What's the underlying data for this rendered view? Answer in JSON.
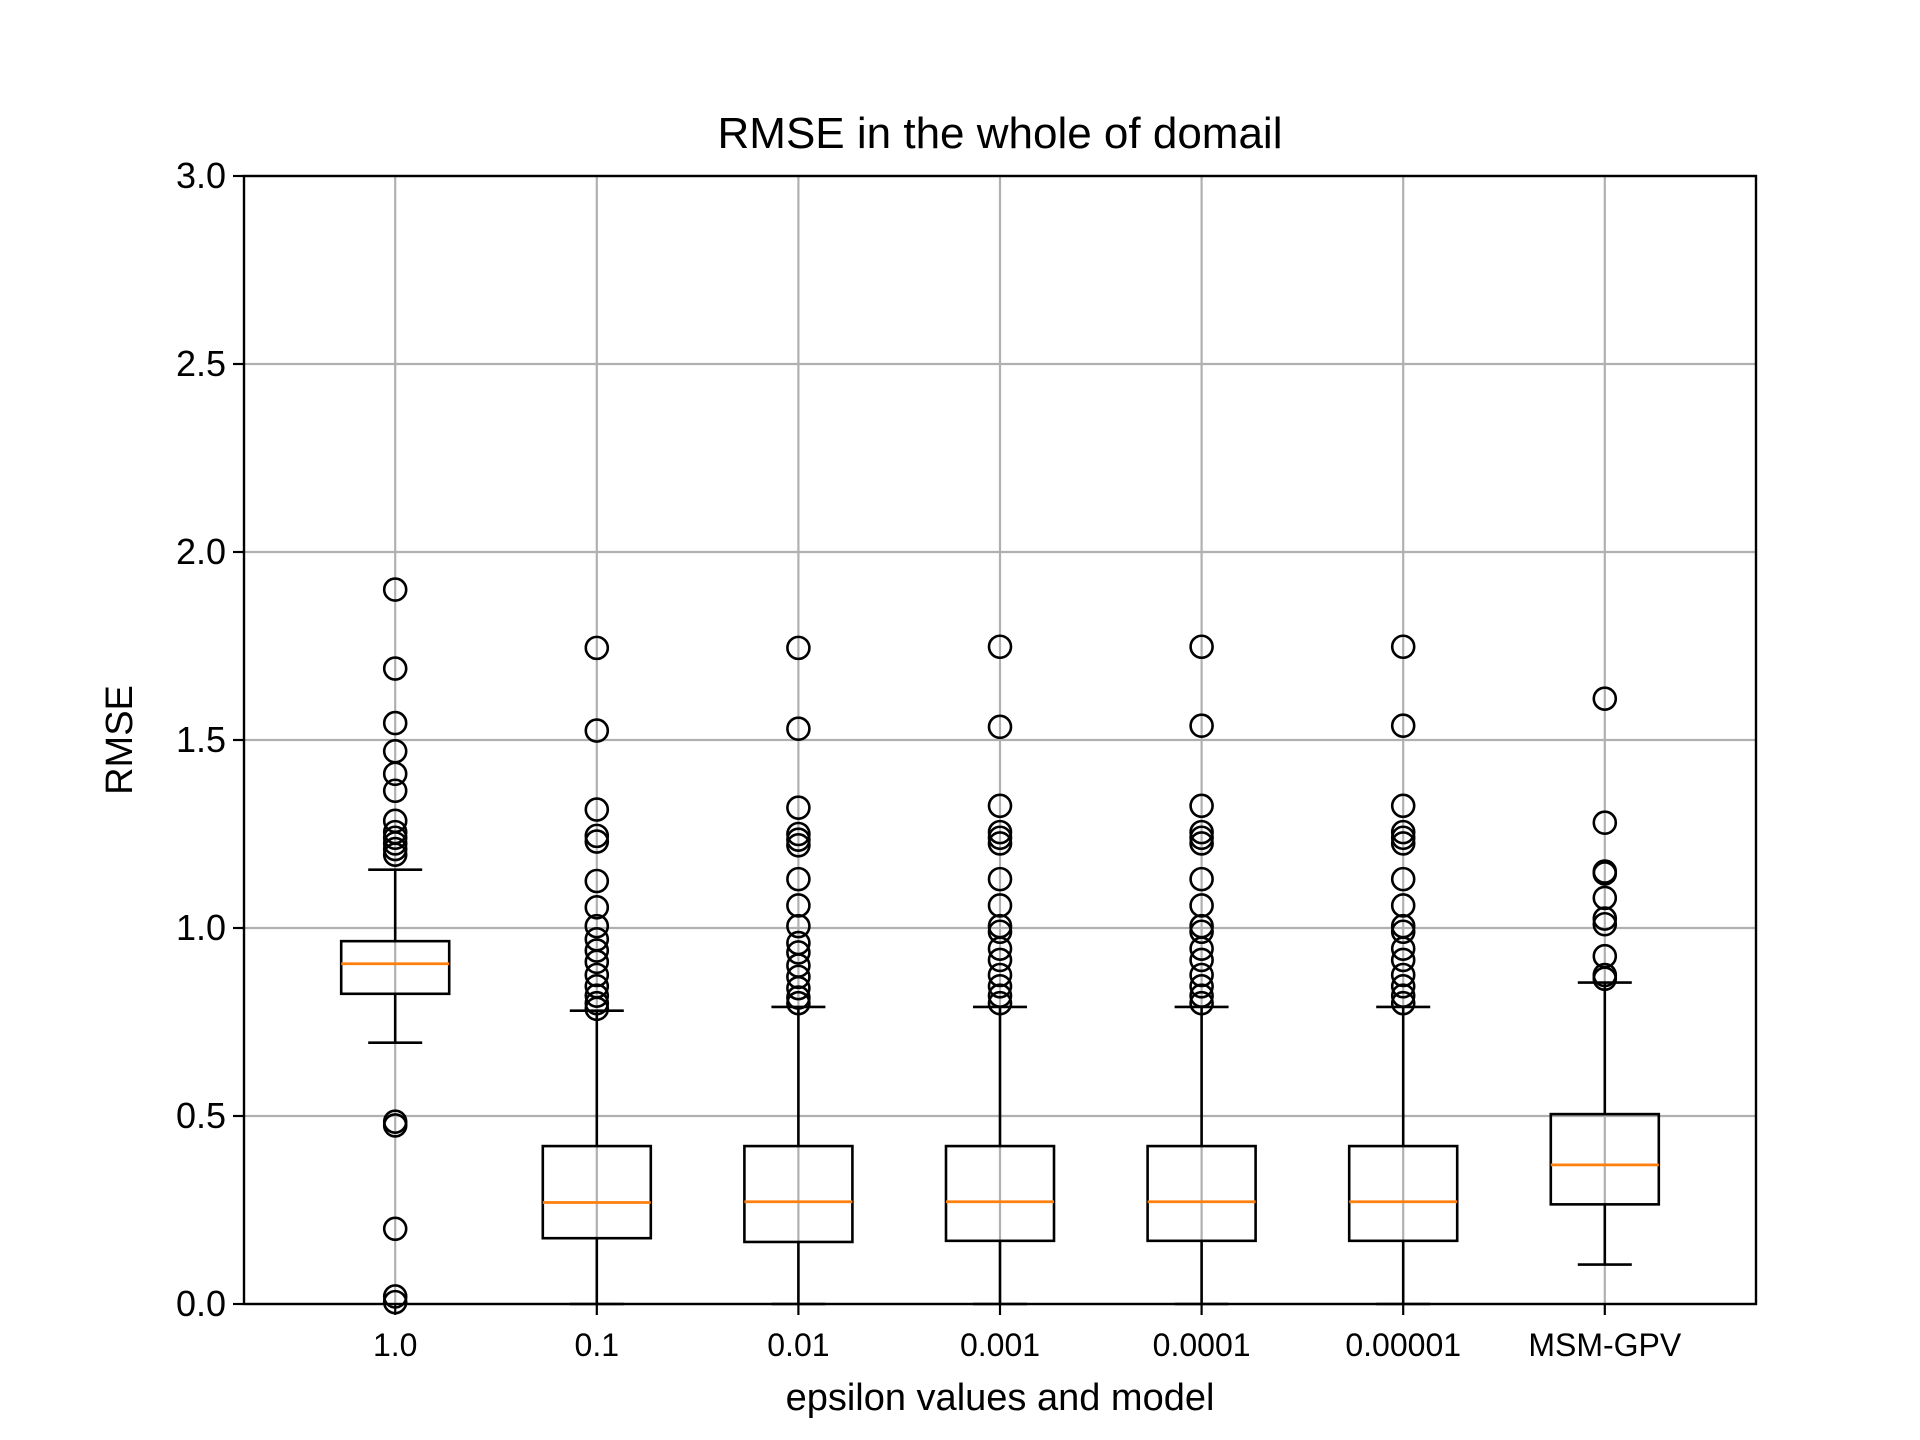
{
  "colors": {
    "background": "#ffffff",
    "axis": "#000000",
    "grid": "#b0b0b0",
    "box": "#000000",
    "median": "#ff7f0e",
    "flier": "#000000"
  },
  "chart_data": {
    "type": "boxplot",
    "title": "RMSE in the whole of domail",
    "xlabel": "epsilon values and model",
    "ylabel": "RMSE",
    "ylim": [
      0.0,
      3.0
    ],
    "yticks": [
      0.0,
      0.5,
      1.0,
      1.5,
      2.0,
      2.5,
      3.0
    ],
    "ytick_labels": [
      "0.0",
      "0.5",
      "1.0",
      "1.5",
      "2.0",
      "2.5",
      "3.0"
    ],
    "grid": true,
    "categories": [
      "1.0",
      "0.1",
      "0.01",
      "0.001",
      "0.0001",
      "0.00001",
      "MSM-GPV"
    ],
    "boxes": [
      {
        "category": "1.0",
        "whisker_low": 0.695,
        "q1": 0.825,
        "median": 0.905,
        "q3": 0.965,
        "whisker_high": 1.155,
        "fliers": [
          1.9,
          1.69,
          1.545,
          1.47,
          1.41,
          1.365,
          1.285,
          1.255,
          1.24,
          1.225,
          1.21,
          1.195,
          0.485,
          0.475,
          0.2,
          0.02,
          0.005
        ]
      },
      {
        "category": "0.1",
        "whisker_low": 0.0,
        "q1": 0.175,
        "median": 0.27,
        "q3": 0.42,
        "whisker_high": 0.78,
        "fliers": [
          1.745,
          1.525,
          1.315,
          1.245,
          1.23,
          1.125,
          1.055,
          1.005,
          0.97,
          0.94,
          0.91,
          0.875,
          0.845,
          0.82,
          0.8,
          0.785
        ]
      },
      {
        "category": "0.01",
        "whisker_low": 0.0,
        "q1": 0.165,
        "median": 0.272,
        "q3": 0.42,
        "whisker_high": 0.79,
        "fliers": [
          1.745,
          1.53,
          1.32,
          1.25,
          1.235,
          1.22,
          1.13,
          1.06,
          1.005,
          0.96,
          0.935,
          0.9,
          0.87,
          0.84,
          0.815,
          0.8
        ]
      },
      {
        "category": "0.001",
        "whisker_low": 0.0,
        "q1": 0.168,
        "median": 0.272,
        "q3": 0.42,
        "whisker_high": 0.79,
        "fliers": [
          1.748,
          1.535,
          1.325,
          1.255,
          1.24,
          1.225,
          1.13,
          1.06,
          1.005,
          0.99,
          0.945,
          0.915,
          0.875,
          0.845,
          0.82,
          0.8
        ]
      },
      {
        "category": "0.0001",
        "whisker_low": 0.0,
        "q1": 0.168,
        "median": 0.272,
        "q3": 0.42,
        "whisker_high": 0.79,
        "fliers": [
          1.748,
          1.538,
          1.325,
          1.255,
          1.24,
          1.225,
          1.13,
          1.06,
          1.005,
          0.99,
          0.945,
          0.915,
          0.875,
          0.845,
          0.82,
          0.8
        ]
      },
      {
        "category": "0.00001",
        "whisker_low": 0.0,
        "q1": 0.168,
        "median": 0.272,
        "q3": 0.42,
        "whisker_high": 0.79,
        "fliers": [
          1.748,
          1.538,
          1.325,
          1.255,
          1.24,
          1.225,
          1.13,
          1.06,
          1.005,
          0.99,
          0.945,
          0.915,
          0.875,
          0.845,
          0.82,
          0.8
        ]
      },
      {
        "category": "MSM-GPV",
        "whisker_low": 0.105,
        "q1": 0.265,
        "median": 0.37,
        "q3": 0.505,
        "whisker_high": 0.855,
        "fliers": [
          1.61,
          1.28,
          1.15,
          1.145,
          1.08,
          1.025,
          1.01,
          0.925,
          0.875,
          0.865
        ]
      }
    ]
  }
}
